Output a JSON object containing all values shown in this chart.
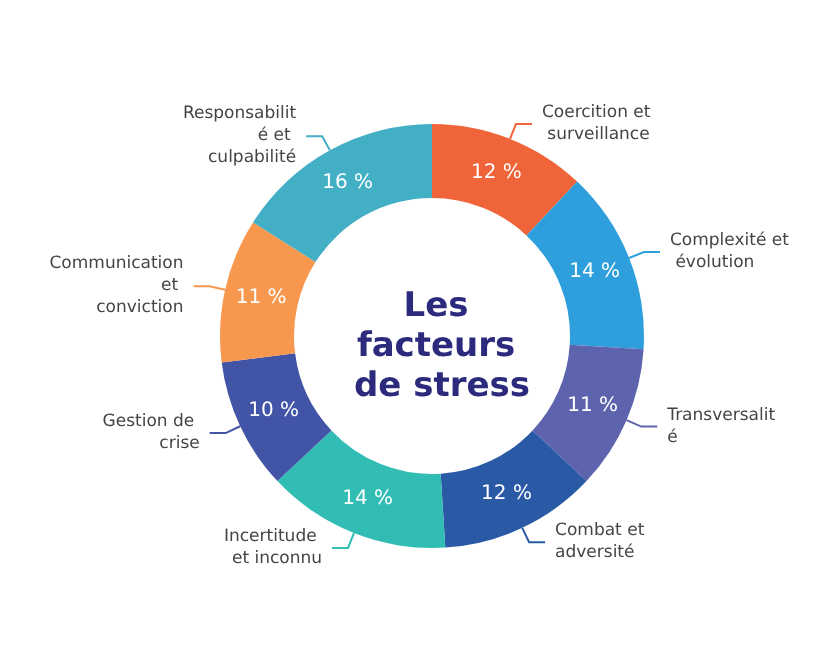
{
  "chart_data": {
    "type": "donut",
    "title": "Les facteurs de stress",
    "categories": [
      "Coercition et surveillance",
      "Complexité et évolution",
      "Transversalité",
      "Combat et adversité",
      "Incertitude et inconnu",
      "Gestion de crise",
      "Communication et conviction",
      "Responsabilité et culpabilité"
    ],
    "values": [
      12,
      14,
      11,
      12,
      14,
      10,
      11,
      16
    ],
    "value_labels": [
      "12 %",
      "14 %",
      "11 %",
      "12 %",
      "14 %",
      "10 %",
      "11 %",
      "16 %"
    ],
    "colors": [
      "#f0643a",
      "#2e9fdc",
      "#5e63ae",
      "#2a5aa6",
      "#31bcb4",
      "#4254a5",
      "#f7984e",
      "#43afc4"
    ],
    "legend": false
  }
}
